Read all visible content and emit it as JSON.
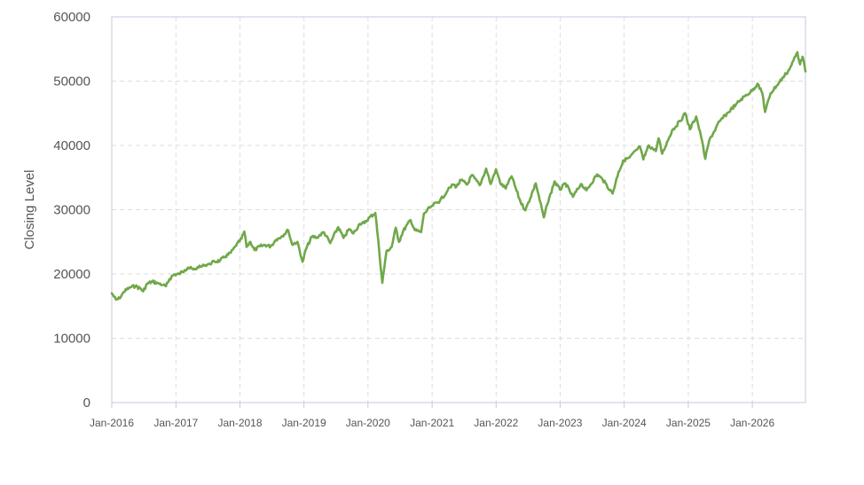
{
  "chart_data": {
    "type": "line",
    "title": "",
    "xlabel": "",
    "ylabel": "Closing Level",
    "ylim": [
      0,
      60000
    ],
    "xlim": [
      "2016-01-01",
      "2026-10-31"
    ],
    "grid": true,
    "legend": "none",
    "line_color": "#70a84a",
    "grid_color": "#dddddd",
    "frame_color": "#c5c9df",
    "y_ticks": [
      {
        "value": 0,
        "label": "0"
      },
      {
        "value": 10000,
        "label": "10000"
      },
      {
        "value": 20000,
        "label": "20000"
      },
      {
        "value": 30000,
        "label": "30000"
      },
      {
        "value": 40000,
        "label": "40000"
      },
      {
        "value": 50000,
        "label": "50000"
      },
      {
        "value": 60000,
        "label": "60000"
      }
    ],
    "x_ticks": [
      {
        "date": "2016-01-01",
        "label": "Jan-2016"
      },
      {
        "date": "2017-01-01",
        "label": "Jan-2017"
      },
      {
        "date": "2018-01-01",
        "label": "Jan-2018"
      },
      {
        "date": "2019-01-01",
        "label": "Jan-2019"
      },
      {
        "date": "2020-01-01",
        "label": "Jan-2020"
      },
      {
        "date": "2021-01-01",
        "label": "Jan-2021"
      },
      {
        "date": "2022-01-01",
        "label": "Jan-2022"
      },
      {
        "date": "2023-01-01",
        "label": "Jan-2023"
      },
      {
        "date": "2024-01-01",
        "label": "Jan-2024"
      },
      {
        "date": "2025-01-01",
        "label": "Jan-2025"
      },
      {
        "date": "2026-01-01",
        "label": "Jan-2026"
      }
    ],
    "series": [
      {
        "points": [
          [
            "2016-01-01",
            17000
          ],
          [
            "2016-01-25",
            16000
          ],
          [
            "2016-02-15",
            16200
          ],
          [
            "2016-03-10",
            17200
          ],
          [
            "2016-04-10",
            17900
          ],
          [
            "2016-05-15",
            18100
          ],
          [
            "2016-06-15",
            17700
          ],
          [
            "2016-06-28",
            17300
          ],
          [
            "2016-07-20",
            18500
          ],
          [
            "2016-08-20",
            18800
          ],
          [
            "2016-09-20",
            18600
          ],
          [
            "2016-10-20",
            18300
          ],
          [
            "2016-11-05",
            18100
          ],
          [
            "2016-11-25",
            19200
          ],
          [
            "2016-12-20",
            19900
          ],
          [
            "2017-01-20",
            20000
          ],
          [
            "2017-02-20",
            20600
          ],
          [
            "2017-03-10",
            21000
          ],
          [
            "2017-04-10",
            20700
          ],
          [
            "2017-05-10",
            21000
          ],
          [
            "2017-06-10",
            21300
          ],
          [
            "2017-07-10",
            21600
          ],
          [
            "2017-08-10",
            21900
          ],
          [
            "2017-09-10",
            22100
          ],
          [
            "2017-10-10",
            22700
          ],
          [
            "2017-11-10",
            23300
          ],
          [
            "2017-12-10",
            24400
          ],
          [
            "2018-01-10",
            25500
          ],
          [
            "2018-01-26",
            26600
          ],
          [
            "2018-02-08",
            24200
          ],
          [
            "2018-03-01",
            25000
          ],
          [
            "2018-03-25",
            23700
          ],
          [
            "2018-04-25",
            24300
          ],
          [
            "2018-05-25",
            24500
          ],
          [
            "2018-06-25",
            24300
          ],
          [
            "2018-07-25",
            25300
          ],
          [
            "2018-08-25",
            25800
          ],
          [
            "2018-10-03",
            26800
          ],
          [
            "2018-10-25",
            24600
          ],
          [
            "2018-11-25",
            25000
          ],
          [
            "2018-12-24",
            21900
          ],
          [
            "2019-01-15",
            24000
          ],
          [
            "2019-02-15",
            25800
          ],
          [
            "2019-03-15",
            25700
          ],
          [
            "2019-04-25",
            26500
          ],
          [
            "2019-05-31",
            24800
          ],
          [
            "2019-07-15",
            27300
          ],
          [
            "2019-08-15",
            25600
          ],
          [
            "2019-09-15",
            27000
          ],
          [
            "2019-10-10",
            26300
          ],
          [
            "2019-11-15",
            27800
          ],
          [
            "2019-12-10",
            27900
          ],
          [
            "2020-01-10",
            28800
          ],
          [
            "2020-02-12",
            29500
          ],
          [
            "2020-02-28",
            25400
          ],
          [
            "2020-03-23",
            18600
          ],
          [
            "2020-04-15",
            23500
          ],
          [
            "2020-05-15",
            24200
          ],
          [
            "2020-06-08",
            27200
          ],
          [
            "2020-06-26",
            25000
          ],
          [
            "2020-07-20",
            26700
          ],
          [
            "2020-08-31",
            28400
          ],
          [
            "2020-09-25",
            26800
          ],
          [
            "2020-10-30",
            26500
          ],
          [
            "2020-11-15",
            29400
          ],
          [
            "2020-12-31",
            30600
          ],
          [
            "2021-02-15",
            31400
          ],
          [
            "2021-03-31",
            33000
          ],
          [
            "2021-04-30",
            33900
          ],
          [
            "2021-05-20",
            33600
          ],
          [
            "2021-06-15",
            34600
          ],
          [
            "2021-07-20",
            33900
          ],
          [
            "2021-08-15",
            35400
          ],
          [
            "2021-09-30",
            33800
          ],
          [
            "2021-11-05",
            36400
          ],
          [
            "2021-12-01",
            34000
          ],
          [
            "2021-12-31",
            36300
          ],
          [
            "2022-01-25",
            34100
          ],
          [
            "2022-02-25",
            33300
          ],
          [
            "2022-03-30",
            35200
          ],
          [
            "2022-05-20",
            31200
          ],
          [
            "2022-06-17",
            29900
          ],
          [
            "2022-08-15",
            34100
          ],
          [
            "2022-09-30",
            28800
          ],
          [
            "2022-10-20",
            30800
          ],
          [
            "2022-11-30",
            34400
          ],
          [
            "2022-12-31",
            33100
          ],
          [
            "2023-01-31",
            34100
          ],
          [
            "2023-03-15",
            32000
          ],
          [
            "2023-04-30",
            34000
          ],
          [
            "2023-05-31",
            33000
          ],
          [
            "2023-07-31",
            35500
          ],
          [
            "2023-08-31",
            34700
          ],
          [
            "2023-10-27",
            32500
          ],
          [
            "2023-11-30",
            35900
          ],
          [
            "2023-12-31",
            37700
          ],
          [
            "2024-01-31",
            38100
          ],
          [
            "2024-03-31",
            39800
          ],
          [
            "2024-04-19",
            37800
          ],
          [
            "2024-05-20",
            40000
          ],
          [
            "2024-06-30",
            39100
          ],
          [
            "2024-07-16",
            41100
          ],
          [
            "2024-08-05",
            38700
          ],
          [
            "2024-09-30",
            42300
          ],
          [
            "2024-11-15",
            43800
          ],
          [
            "2024-12-15",
            45000
          ],
          [
            "2025-01-10",
            42500
          ],
          [
            "2025-02-15",
            44500
          ],
          [
            "2025-03-15",
            41300
          ],
          [
            "2025-04-08",
            37900
          ],
          [
            "2025-04-30",
            40800
          ],
          [
            "2025-06-30",
            43800
          ],
          [
            "2025-08-15",
            45100
          ],
          [
            "2025-09-30",
            46400
          ],
          [
            "2025-11-15",
            47600
          ],
          [
            "2025-12-31",
            48500
          ],
          [
            "2026-01-31",
            49600
          ],
          [
            "2026-02-28",
            48000
          ],
          [
            "2026-03-15",
            45200
          ],
          [
            "2026-04-15",
            48100
          ],
          [
            "2026-05-31",
            49700
          ],
          [
            "2026-07-31",
            51800
          ],
          [
            "2026-09-15",
            54500
          ],
          [
            "2026-09-30",
            52600
          ],
          [
            "2026-10-15",
            53800
          ],
          [
            "2026-10-31",
            51500
          ]
        ]
      }
    ]
  }
}
